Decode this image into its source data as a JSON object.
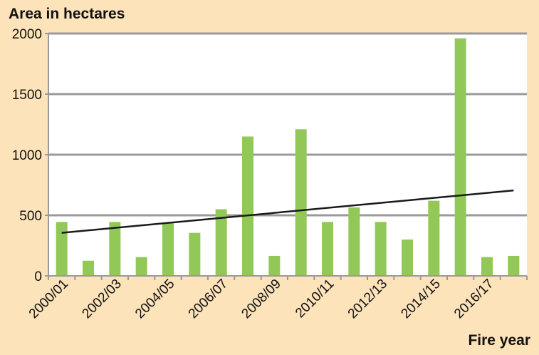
{
  "chart_data": {
    "type": "bar",
    "ylabel": "Area in hectares",
    "xlabel": "Fire year",
    "ylim": [
      0,
      2000
    ],
    "yticks": [
      0,
      500,
      1000,
      1500,
      2000
    ],
    "grid": true,
    "categories": [
      "2000/01",
      "2001/02",
      "2002/03",
      "2003/04",
      "2004/05",
      "2005/06",
      "2006/07",
      "2007/08",
      "2008/09",
      "2009/10",
      "2010/11",
      "2011/12",
      "2012/13",
      "2013/14",
      "2014/15",
      "2015/16",
      "2016/17",
      "2017/18"
    ],
    "tick_labels": [
      "2000/01",
      "",
      "2002/03",
      "",
      "2004/05",
      "",
      "2006/07",
      "",
      "2008/09",
      "",
      "2010/11",
      "",
      "2012/13",
      "",
      "2014/15",
      "",
      "2016/17",
      ""
    ],
    "values": [
      445,
      125,
      445,
      155,
      435,
      355,
      550,
      1150,
      165,
      1210,
      445,
      565,
      445,
      300,
      620,
      1960,
      155,
      165
    ],
    "trendline": {
      "start": 355,
      "end": 705
    },
    "colors": {
      "bar": "#92c857",
      "trend": "#1a1a1a",
      "grid": "#9a9a9a",
      "background": "#fde3ba",
      "plot": "#ffffff"
    }
  }
}
